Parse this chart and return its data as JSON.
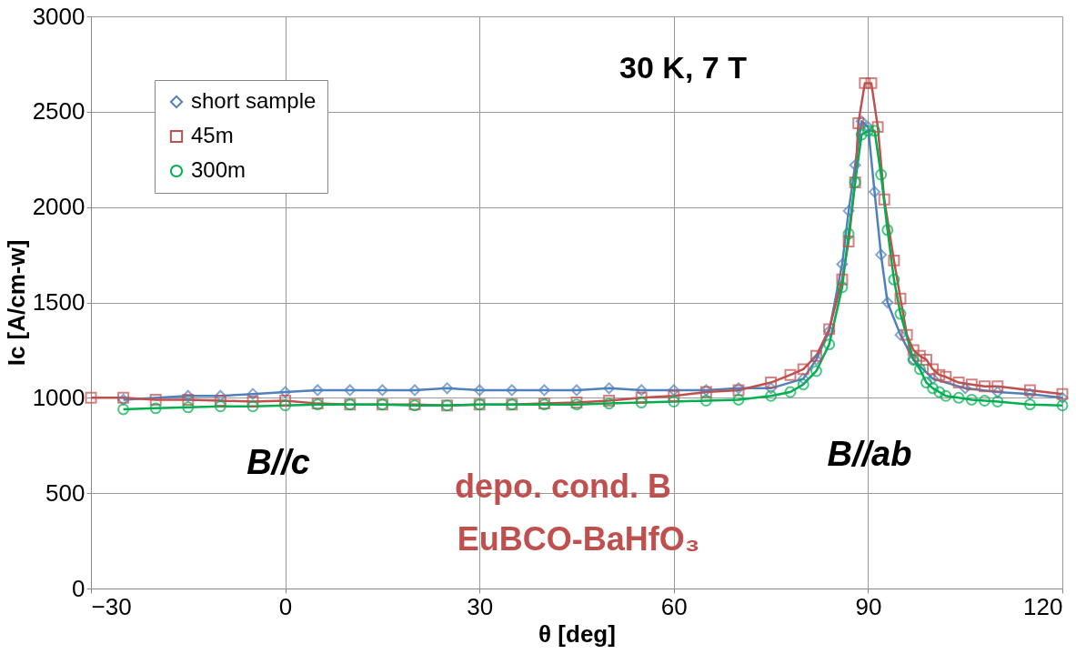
{
  "chart_data": {
    "type": "line",
    "xlabel": "θ [deg]",
    "ylabel": "Ic [A/cm-w]",
    "xlim": [
      -30,
      120
    ],
    "xticks": [
      -30,
      0,
      30,
      60,
      90,
      120
    ],
    "ylim": [
      0,
      3000
    ],
    "yticks": [
      0,
      500,
      1000,
      1500,
      2000,
      2500,
      3000
    ],
    "grid": true,
    "legend": "top left",
    "line_style": "solid",
    "annotations": [
      "30 K, 7 T",
      "B//c",
      "B//ab",
      "depo. cond. B",
      "EuBCO-BaHfO₃"
    ],
    "series": [
      {
        "name": "short sample",
        "color": "#4f81bd",
        "marker": "diamond",
        "x": [
          -25,
          -15,
          -10,
          -5,
          0,
          5,
          10,
          15,
          20,
          25,
          30,
          35,
          40,
          45,
          50,
          55,
          60,
          65,
          70,
          75,
          80,
          82,
          84,
          86,
          87,
          88,
          89,
          90,
          91,
          92,
          93,
          95,
          97,
          100,
          105,
          110,
          115,
          120
        ],
        "values": [
          990,
          1010,
          1010,
          1020,
          1030,
          1040,
          1040,
          1040,
          1040,
          1050,
          1040,
          1040,
          1040,
          1040,
          1050,
          1040,
          1040,
          1040,
          1050,
          1050,
          1100,
          1200,
          1350,
          1700,
          1980,
          2220,
          2450,
          2420,
          2080,
          1750,
          1500,
          1330,
          1200,
          1100,
          1050,
          1030,
          1020,
          1000
        ]
      },
      {
        "name": " 45m",
        "color": "#c0504d",
        "marker": "square",
        "x": [
          -30,
          -25,
          -20,
          -15,
          -10,
          -5,
          0,
          5,
          10,
          15,
          20,
          25,
          30,
          35,
          40,
          45,
          50,
          55,
          60,
          65,
          70,
          75,
          78,
          80,
          82,
          84,
          86,
          87,
          88,
          88.5,
          89.5,
          90.5,
          91.5,
          92.5,
          94,
          95,
          96,
          97,
          98,
          99,
          100,
          101,
          102,
          104,
          106,
          108,
          110,
          115,
          120
        ],
        "values": [
          1000,
          1000,
          990,
          990,
          985,
          980,
          985,
          970,
          965,
          965,
          965,
          960,
          965,
          965,
          970,
          975,
          985,
          1000,
          1010,
          1030,
          1040,
          1080,
          1120,
          1150,
          1220,
          1360,
          1620,
          1820,
          2130,
          2440,
          2650,
          2650,
          2420,
          2040,
          1720,
          1520,
          1330,
          1250,
          1220,
          1200,
          1150,
          1120,
          1110,
          1080,
          1070,
          1060,
          1060,
          1040,
          1020
        ]
      },
      {
        "name": "300m",
        "color": "#00b050",
        "marker": "circle",
        "x": [
          -25,
          -20,
          -15,
          -10,
          -5,
          0,
          5,
          10,
          15,
          20,
          25,
          30,
          35,
          40,
          45,
          50,
          55,
          60,
          65,
          70,
          75,
          78,
          80,
          82,
          84,
          86,
          87,
          88,
          89,
          90,
          91,
          92,
          93,
          94,
          95,
          97,
          98,
          99,
          100,
          101,
          102,
          104,
          106,
          108,
          110,
          115,
          120
        ],
        "values": [
          940,
          945,
          950,
          955,
          955,
          960,
          965,
          965,
          965,
          960,
          960,
          965,
          965,
          965,
          965,
          970,
          975,
          980,
          985,
          990,
          1010,
          1030,
          1070,
          1140,
          1280,
          1580,
          1860,
          2130,
          2380,
          2400,
          2400,
          2170,
          1880,
          1620,
          1440,
          1200,
          1150,
          1080,
          1050,
          1030,
          1010,
          1000,
          990,
          985,
          980,
          965,
          960
        ]
      }
    ]
  }
}
